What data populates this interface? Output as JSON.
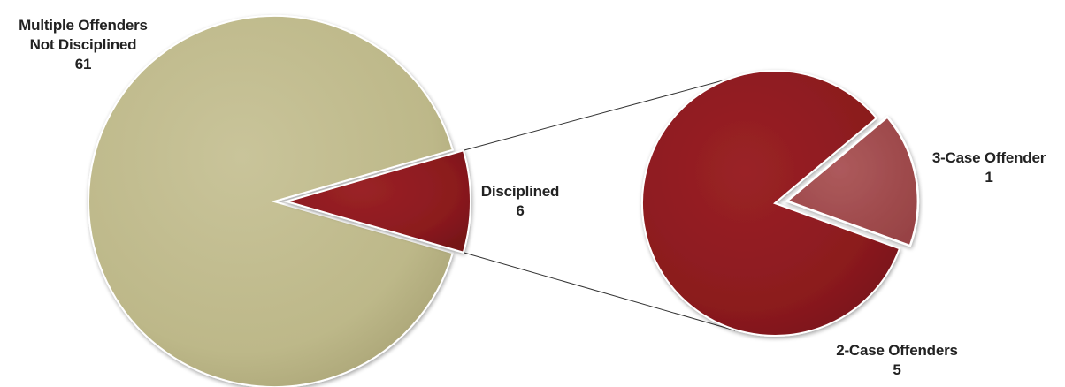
{
  "chart_data": {
    "type": "pie",
    "charts": [
      {
        "id": "main-pie",
        "slices": [
          {
            "label_lines": [
              "Multiple Offenders",
              "Not Disciplined"
            ],
            "value": 61,
            "value_text": "61",
            "color": "#bdb889"
          },
          {
            "label_lines": [
              "Disciplined"
            ],
            "value": 6,
            "value_text": "6",
            "color": "#8b1a1e"
          }
        ]
      },
      {
        "id": "breakdown-pie",
        "breakdown_of": "Disciplined",
        "slices": [
          {
            "label_lines": [
              "3-Case Offender"
            ],
            "value": 1,
            "value_text": "1",
            "color": "#a24c4e"
          },
          {
            "label_lines": [
              "2-Case Offenders"
            ],
            "value": 5,
            "value_text": "5",
            "color": "#8b1a1e"
          }
        ]
      }
    ]
  }
}
